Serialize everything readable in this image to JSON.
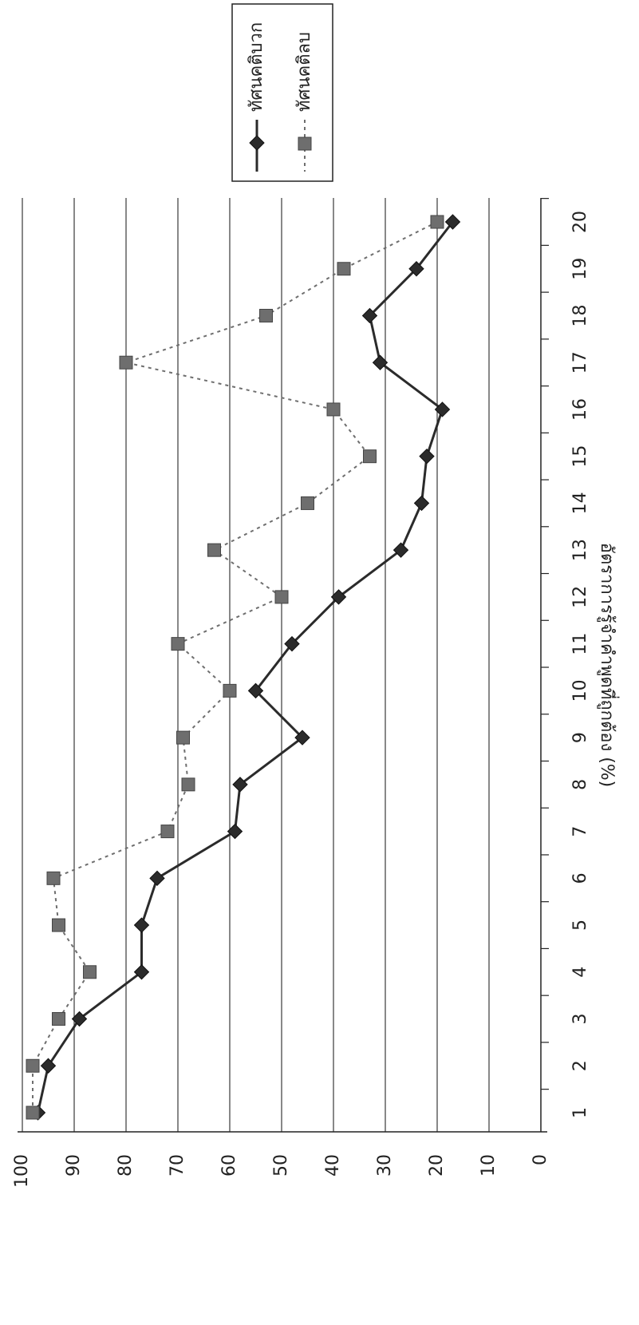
{
  "chart_data": {
    "type": "line",
    "title": "",
    "xlabel": "",
    "ylabel": "อัตราการรู้จำคำพูดที่ถูกต้อง (%)",
    "categories": [
      "1",
      "2",
      "3",
      "4",
      "5",
      "6",
      "7",
      "8",
      "9",
      "10",
      "11",
      "12",
      "13",
      "14",
      "15",
      "16",
      "17",
      "18",
      "19",
      "20"
    ],
    "yticks": [
      "0",
      "10",
      "20",
      "30",
      "40",
      "50",
      "60",
      "70",
      "80",
      "90",
      "100"
    ],
    "ylim": [
      0,
      100
    ],
    "grid": true,
    "legend_position": "top-right",
    "series": [
      {
        "name": "ทัศนคติบวก",
        "style": "solid",
        "marker": "diamond",
        "color": "#2b2b2b",
        "values": [
          97,
          95,
          89,
          77,
          77,
          74,
          59,
          58,
          46,
          55,
          48,
          39,
          27,
          23,
          22,
          19,
          31,
          33,
          24,
          17
        ]
      },
      {
        "name": "ทัศนคติลบ",
        "style": "dotted",
        "marker": "square",
        "color": "#6e6e6e",
        "values": [
          98,
          98,
          93,
          87,
          93,
          94,
          72,
          68,
          69,
          60,
          70,
          50,
          63,
          45,
          33,
          40,
          80,
          53,
          38,
          20
        ]
      }
    ]
  }
}
